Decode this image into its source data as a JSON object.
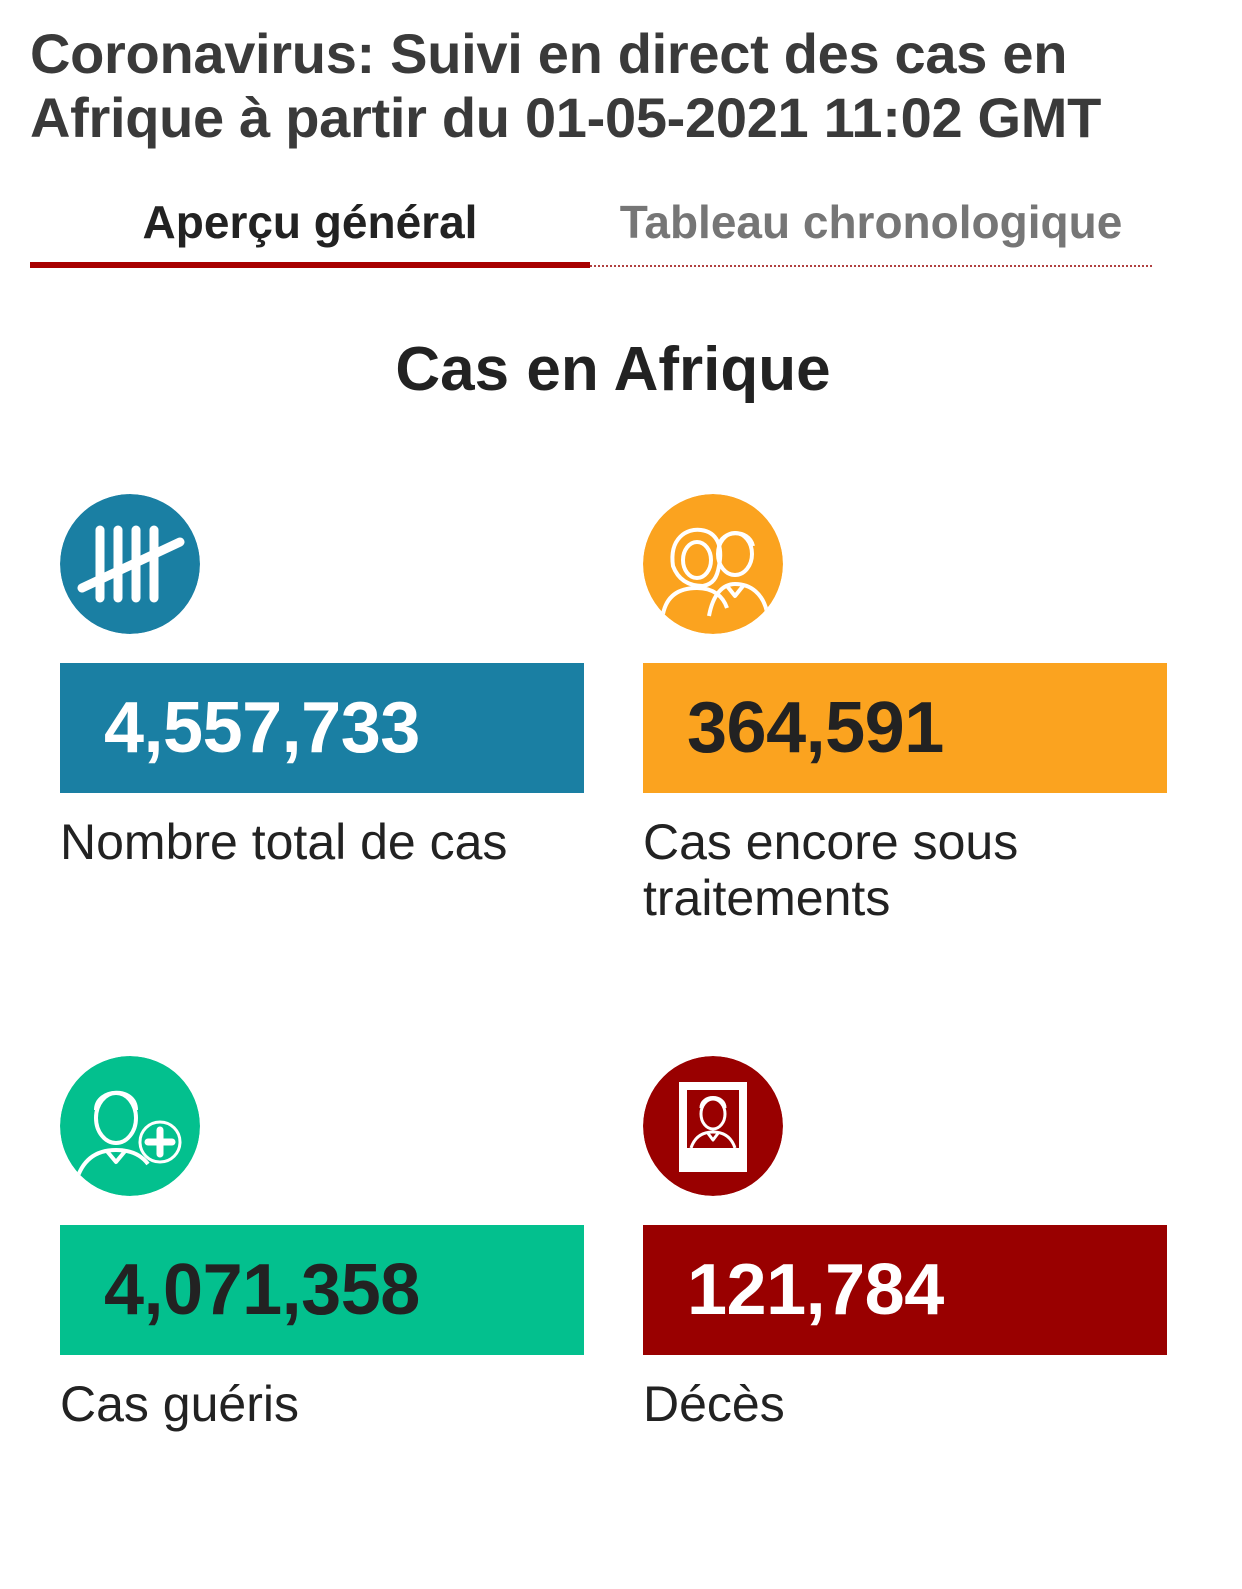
{
  "header": {
    "title": "Coronavirus: Suivi en direct des cas en Afrique à partir du 01-05-2021 11:02 GMT"
  },
  "tabs": [
    {
      "label": "Aperçu général",
      "active": true
    },
    {
      "label": "Tableau chronologique",
      "active": false
    }
  ],
  "main": {
    "section_title": "Cas en Afrique",
    "stats": [
      {
        "icon": "tally-marks-icon",
        "value": "4,557,733",
        "label": "Nombre total de cas",
        "color": "#1a7fa3",
        "value_color": "#ffffff"
      },
      {
        "icon": "people-icon",
        "value": "364,591",
        "label": "Cas encore sous traitements",
        "color": "#fba31f",
        "value_color": "#222222"
      },
      {
        "icon": "person-plus-icon",
        "value": "4,071,358",
        "label": "Cas guéris",
        "color": "#03c08e",
        "value_color": "#222222"
      },
      {
        "icon": "portrait-frame-icon",
        "value": "121,784",
        "label": "Décès",
        "color": "#990000",
        "value_color": "#ffffff"
      }
    ]
  },
  "colors": {
    "accent": "#a80000",
    "title_text": "#3a3a3a",
    "inactive_tab_text": "#767676"
  }
}
